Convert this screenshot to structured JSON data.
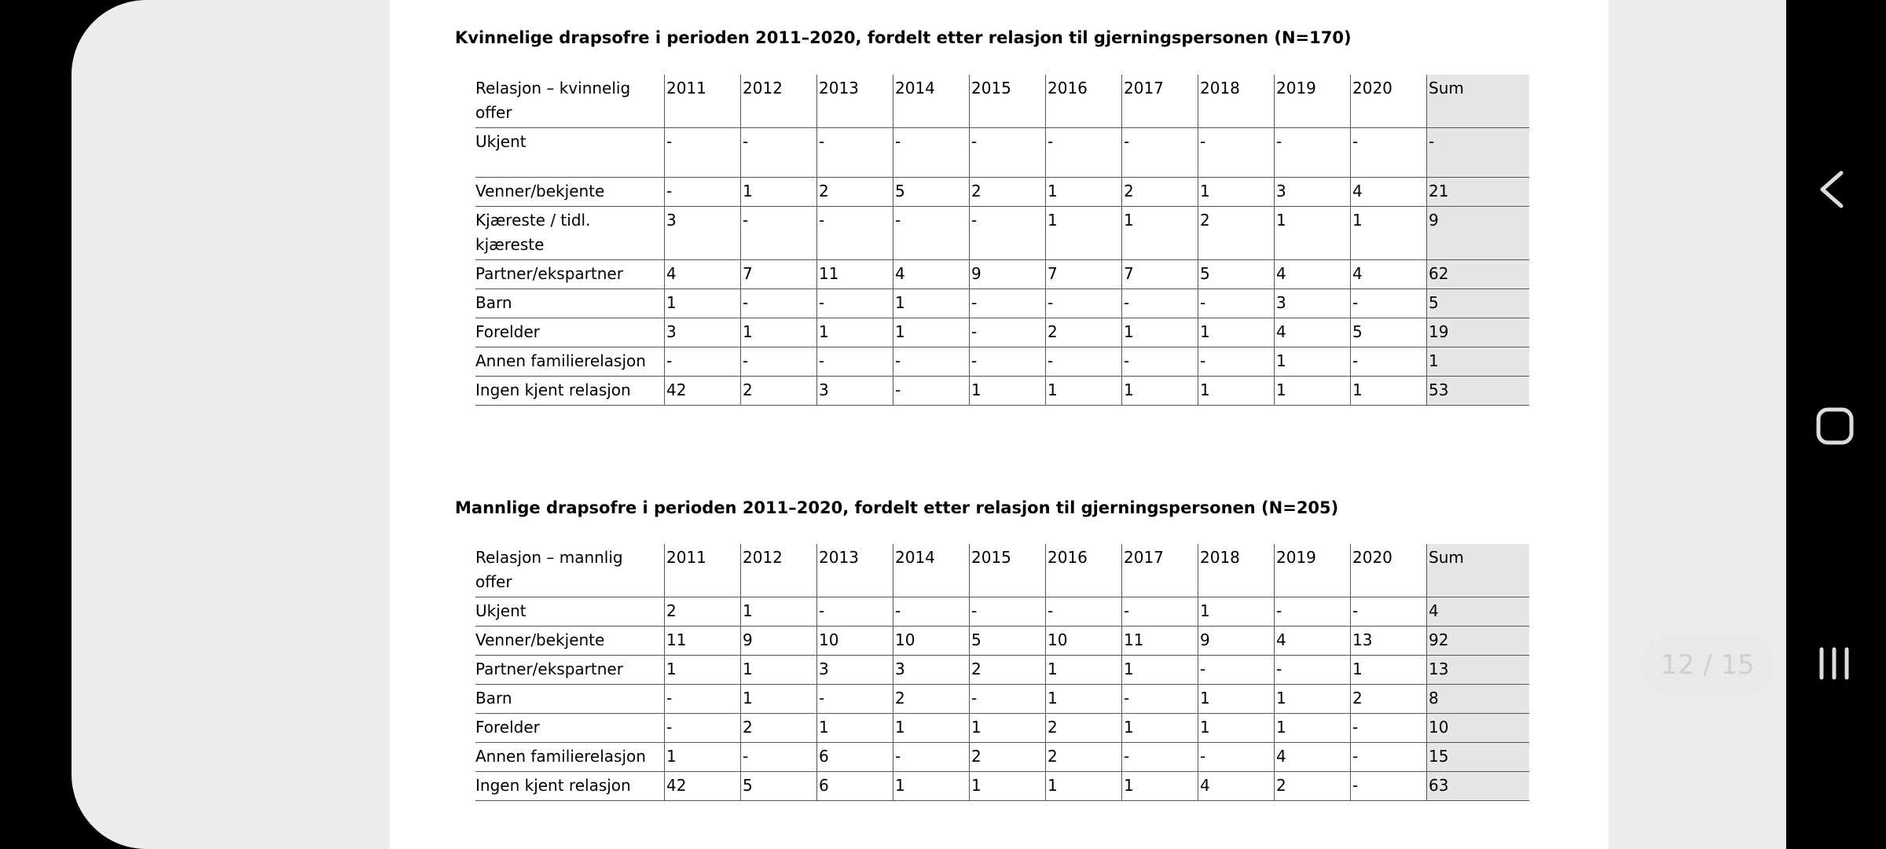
{
  "tables": [
    {
      "title": "Kvinnelige drapsofre i perioden 2011–2020, fordelt etter relasjon til gjerningspersonen (N=170)",
      "header": [
        "Relasjon – kvinnelig offer",
        "2011",
        "2012",
        "2013",
        "2014",
        "2015",
        "2016",
        "2017",
        "2018",
        "2019",
        "2020",
        "Sum"
      ],
      "rows": [
        [
          "Ukjent",
          "-",
          "-",
          "-",
          "-",
          "-",
          "-",
          "-",
          "-",
          "-",
          "-",
          "-"
        ],
        [
          "Venner/bekjente",
          "-",
          "1",
          "2",
          "5",
          "2",
          "1",
          "2",
          "1",
          "3",
          "4",
          "21"
        ],
        [
          "Kjæreste / tidl. kjæreste",
          "3",
          "-",
          "-",
          "-",
          "-",
          "1",
          "1",
          "2",
          "1",
          "1",
          "9"
        ],
        [
          "Partner/ekspartner",
          "4",
          "7",
          "11",
          "4",
          "9",
          "7",
          "7",
          "5",
          "4",
          "4",
          "62"
        ],
        [
          "Barn",
          "1",
          "-",
          "-",
          "1",
          "-",
          "-",
          "-",
          "-",
          "3",
          "-",
          "5"
        ],
        [
          "Forelder",
          "3",
          "1",
          "1",
          "1",
          "-",
          "2",
          "1",
          "1",
          "4",
          "5",
          "19"
        ],
        [
          "Annen familierelasjon",
          "-",
          "-",
          "-",
          "-",
          "-",
          "-",
          "-",
          "-",
          "1",
          "-",
          "1"
        ],
        [
          "Ingen kjent relasjon",
          "42",
          "2",
          "3",
          "-",
          "1",
          "1",
          "1",
          "1",
          "1",
          "1",
          "53"
        ]
      ]
    },
    {
      "title": "Mannlige drapsofre i perioden 2011–2020, fordelt etter relasjon til gjerningspersonen (N=205)",
      "header": [
        "Relasjon – mannlig offer",
        "2011",
        "2012",
        "2013",
        "2014",
        "2015",
        "2016",
        "2017",
        "2018",
        "2019",
        "2020",
        "Sum"
      ],
      "rows": [
        [
          "Ukjent",
          "2",
          "1",
          "-",
          "-",
          "-",
          "-",
          "-",
          "1",
          "-",
          "-",
          "4"
        ],
        [
          "Venner/bekjente",
          "11",
          "9",
          "10",
          "10",
          "5",
          "10",
          "11",
          "9",
          "4",
          "13",
          "92"
        ],
        [
          "Partner/ekspartner",
          "1",
          "1",
          "3",
          "3",
          "2",
          "1",
          "1",
          "-",
          "-",
          "1",
          "13"
        ],
        [
          "Barn",
          "-",
          "1",
          "-",
          "2",
          "-",
          "1",
          "-",
          "1",
          "1",
          "2",
          "8"
        ],
        [
          "Forelder",
          "-",
          "2",
          "1",
          "1",
          "1",
          "2",
          "1",
          "1",
          "1",
          "-",
          "10"
        ],
        [
          "Annen familierelasjon",
          "1",
          "-",
          "6",
          "-",
          "2",
          "2",
          "-",
          "-",
          "4",
          "-",
          "15"
        ],
        [
          "Ingen kjent relasjon",
          "42",
          "5",
          "6",
          "1",
          "1",
          "1",
          "1",
          "4",
          "2",
          "-",
          "63"
        ]
      ]
    }
  ],
  "page_indicator": "12 / 15"
}
